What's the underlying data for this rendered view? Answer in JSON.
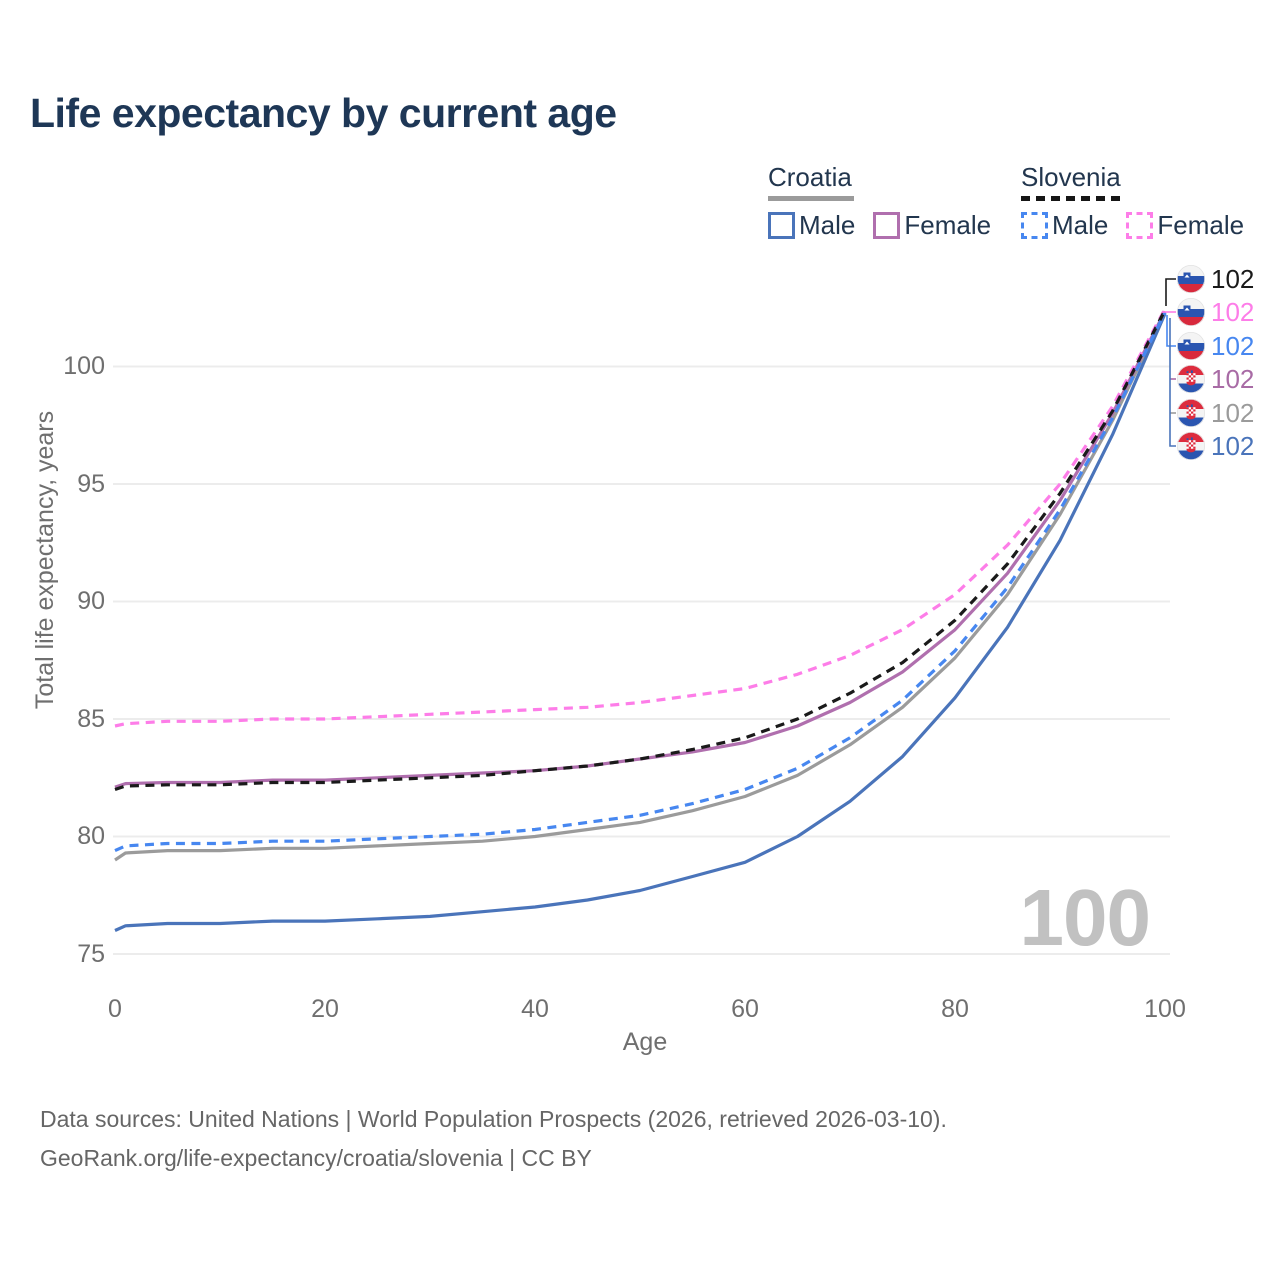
{
  "title": "Life expectancy by current age",
  "legend": {
    "croatia": {
      "label": "Croatia",
      "male_label": "Male",
      "female_label": "Female"
    },
    "slovenia": {
      "label": "Slovenia",
      "male_label": "Male",
      "female_label": "Female"
    }
  },
  "y_axis": {
    "label": "Total life expectancy, years",
    "ticks": [
      "100",
      "95",
      "90",
      "85",
      "80",
      "75"
    ]
  },
  "x_axis": {
    "label": "Age",
    "ticks": [
      "0",
      "20",
      "40",
      "60",
      "80",
      "100"
    ]
  },
  "end_labels": [
    {
      "country": "Slovenia",
      "series": "Slovenia both sexes",
      "value": "102",
      "color": "#1a1a1a"
    },
    {
      "country": "Slovenia",
      "series": "Slovenia female",
      "value": "102",
      "color": "#fd7de8"
    },
    {
      "country": "Slovenia",
      "series": "Slovenia male",
      "value": "102",
      "color": "#4787f0"
    },
    {
      "country": "Croatia",
      "series": "Croatia female",
      "value": "102",
      "color": "#a86ba5"
    },
    {
      "country": "Croatia",
      "series": "Croatia both sexes",
      "value": "102",
      "color": "#9b9b9b"
    },
    {
      "country": "Croatia",
      "series": "Croatia male",
      "value": "102",
      "color": "#4a74ba"
    }
  ],
  "watermark": "100",
  "footer": {
    "line1": "Data sources: United Nations | World Population Prospects (2026, retrieved 2026-03-10).",
    "line2": "GeoRank.org/life-expectancy/croatia/slovenia | CC BY"
  },
  "colors": {
    "croatia_male": "#4a74ba",
    "croatia_total": "#9b9b9b",
    "croatia_female": "#b06fae",
    "slovenia_male": "#4787f0",
    "slovenia_total": "#1a1a1a",
    "slovenia_female": "#fd7de8",
    "title_text": "#1e3756",
    "axis_text": "#6f6f6f",
    "grid": "#ececec",
    "watermark": "#c1c1c1",
    "footer_text": "#666666"
  },
  "chart_data": {
    "type": "line",
    "title": "Life expectancy by current age",
    "xlabel": "Age",
    "ylabel": "Total life expectancy, years",
    "xlim": [
      0,
      100
    ],
    "ylim": [
      74,
      103
    ],
    "xticks_values": [
      0,
      20,
      40,
      60,
      80,
      100
    ],
    "yticks_values": [
      75,
      80,
      85,
      90,
      95,
      100
    ],
    "grid": "horizontal",
    "legend_position": "top-right",
    "x": [
      0,
      1,
      5,
      10,
      15,
      20,
      25,
      30,
      35,
      40,
      45,
      50,
      55,
      60,
      65,
      70,
      75,
      80,
      85,
      90,
      95,
      100
    ],
    "series": [
      {
        "key": "croatia_total",
        "name": "Croatia both sexes",
        "color": "#9b9b9b",
        "dash": false,
        "values": [
          79.0,
          79.3,
          79.4,
          79.4,
          79.5,
          79.5,
          79.6,
          79.7,
          79.8,
          80.0,
          80.3,
          80.6,
          81.1,
          81.7,
          82.6,
          83.9,
          85.5,
          87.6,
          90.3,
          93.7,
          97.7,
          102.3
        ]
      },
      {
        "key": "croatia_female",
        "name": "Croatia female",
        "color": "#b06fae",
        "dash": false,
        "values": [
          82.1,
          82.25,
          82.3,
          82.3,
          82.4,
          82.4,
          82.5,
          82.6,
          82.7,
          82.8,
          83.0,
          83.3,
          83.6,
          84.0,
          84.7,
          85.7,
          87.0,
          88.8,
          91.2,
          94.3,
          98.0,
          102.35
        ]
      },
      {
        "key": "croatia_male",
        "name": "Croatia male",
        "color": "#4a74ba",
        "dash": false,
        "values": [
          76.0,
          76.2,
          76.3,
          76.3,
          76.4,
          76.4,
          76.5,
          76.6,
          76.8,
          77.0,
          77.3,
          77.7,
          78.3,
          78.9,
          80.0,
          81.5,
          83.4,
          85.9,
          88.9,
          92.6,
          97.1,
          102.25
        ]
      },
      {
        "key": "slovenia_female",
        "name": "Slovenia female",
        "color": "#fd7de8",
        "dash": true,
        "values": [
          84.7,
          84.8,
          84.9,
          84.9,
          85.0,
          85.0,
          85.1,
          85.2,
          85.3,
          85.4,
          85.5,
          85.7,
          86.0,
          86.3,
          86.9,
          87.7,
          88.8,
          90.3,
          92.4,
          95.0,
          98.3,
          102.45
        ]
      },
      {
        "key": "slovenia_total",
        "name": "Slovenia both sexes",
        "color": "#1a1a1a",
        "dash": true,
        "values": [
          82.0,
          82.15,
          82.2,
          82.2,
          82.3,
          82.3,
          82.4,
          82.5,
          82.6,
          82.8,
          83.0,
          83.3,
          83.7,
          84.2,
          85.0,
          86.1,
          87.4,
          89.2,
          91.6,
          94.6,
          98.1,
          102.4
        ]
      },
      {
        "key": "slovenia_male",
        "name": "Slovenia male",
        "color": "#4787f0",
        "dash": true,
        "values": [
          79.4,
          79.6,
          79.7,
          79.7,
          79.8,
          79.8,
          79.9,
          80.0,
          80.1,
          80.3,
          80.6,
          80.9,
          81.4,
          82.0,
          82.9,
          84.2,
          85.8,
          87.9,
          90.6,
          93.9,
          97.8,
          102.3
        ]
      }
    ]
  }
}
